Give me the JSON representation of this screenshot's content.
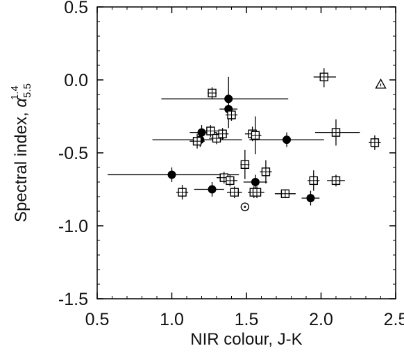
{
  "chart_data": {
    "type": "scatter",
    "xlabel": "NIR colour, J-K",
    "ylabel": {
      "prefix": "Spectral index, ",
      "symbol": "α",
      "superscript": "1.4",
      "subscript": "5.5"
    },
    "xlim": [
      0.5,
      2.5
    ],
    "ylim": [
      -1.5,
      0.5
    ],
    "xticks": [
      "0.5",
      "1.0",
      "1.5",
      "2.0",
      "2.5"
    ],
    "yticks": [
      "-1.5",
      "-1.0",
      "-0.5",
      "0.0",
      "0.5"
    ],
    "grid": false,
    "legend": "none",
    "series": [
      {
        "marker": "filled-circle",
        "color": "#000000",
        "points": [
          {
            "x": 1.0,
            "y": -0.65,
            "xerr": [
              0.43,
              0.45
            ],
            "yerr": [
              0.05,
              0.05
            ]
          },
          {
            "x": 1.19,
            "y": -0.41,
            "xerr": [
              0.32,
              0.28
            ],
            "yerr": [
              0.05,
              0.05
            ]
          },
          {
            "x": 1.2,
            "y": -0.36,
            "xerr": [
              0.08,
              0.1
            ],
            "yerr": [
              0.05,
              0.05
            ]
          },
          {
            "x": 1.27,
            "y": -0.75,
            "xerr": [
              0.12,
              0.08
            ],
            "yerr": [
              0.05,
              0.05
            ]
          },
          {
            "x": 1.38,
            "y": -0.13,
            "xerr": [
              0.45,
              0.4
            ],
            "yerr": [
              0.2,
              0.15
            ]
          },
          {
            "x": 1.38,
            "y": -0.2,
            "xerr": [
              0.06,
              0.06
            ],
            "yerr": [
              0.05,
              0.05
            ]
          },
          {
            "x": 1.56,
            "y": -0.7,
            "xerr": [
              0.08,
              0.08
            ],
            "yerr": [
              0.05,
              0.05
            ]
          },
          {
            "x": 1.77,
            "y": -0.41,
            "xerr": [
              0.25,
              0.25
            ],
            "yerr": [
              0.05,
              0.05
            ]
          },
          {
            "x": 1.93,
            "y": -0.81,
            "xerr": [
              0.06,
              0.06
            ],
            "yerr": [
              0.05,
              0.05
            ]
          }
        ]
      },
      {
        "marker": "open-square",
        "color": "#000000",
        "points": [
          {
            "x": 1.07,
            "y": -0.77,
            "xerr": [
              0.04,
              0.04
            ],
            "yerr": [
              0.05,
              0.05
            ]
          },
          {
            "x": 1.17,
            "y": -0.42,
            "xerr": [
              0.05,
              0.05
            ],
            "yerr": [
              0.05,
              0.05
            ]
          },
          {
            "x": 1.26,
            "y": -0.35,
            "xerr": [
              0.05,
              0.05
            ],
            "yerr": [
              0.04,
              0.04
            ]
          },
          {
            "x": 1.27,
            "y": -0.09,
            "xerr": [
              0.03,
              0.03
            ],
            "yerr": [
              0.04,
              0.04
            ]
          },
          {
            "x": 1.3,
            "y": -0.4,
            "xerr": [
              0.05,
              0.05
            ],
            "yerr": [
              0.04,
              0.04
            ]
          },
          {
            "x": 1.34,
            "y": -0.37,
            "xerr": [
              0.04,
              0.04
            ],
            "yerr": [
              0.04,
              0.04
            ]
          },
          {
            "x": 1.35,
            "y": -0.67,
            "xerr": [
              0.05,
              0.05
            ],
            "yerr": [
              0.04,
              0.04
            ]
          },
          {
            "x": 1.39,
            "y": -0.69,
            "xerr": [
              0.05,
              0.05
            ],
            "yerr": [
              0.04,
              0.04
            ]
          },
          {
            "x": 1.4,
            "y": -0.24,
            "xerr": [
              0.04,
              0.04
            ],
            "yerr": [
              0.04,
              0.04
            ]
          },
          {
            "x": 1.42,
            "y": -0.77,
            "xerr": [
              0.05,
              0.05
            ],
            "yerr": [
              0.04,
              0.04
            ]
          },
          {
            "x": 1.49,
            "y": -0.58,
            "xerr": [
              0.03,
              0.03
            ],
            "yerr": [
              0.1,
              0.1
            ]
          },
          {
            "x": 1.54,
            "y": -0.37,
            "xerr": [
              0.05,
              0.05
            ],
            "yerr": [
              0.05,
              0.05
            ]
          },
          {
            "x": 1.55,
            "y": -0.77,
            "xerr": [
              0.04,
              0.04
            ],
            "yerr": [
              0.04,
              0.04
            ]
          },
          {
            "x": 1.56,
            "y": -0.38,
            "xerr": [
              0.04,
              0.04
            ],
            "yerr": [
              0.13,
              0.13
            ]
          },
          {
            "x": 1.57,
            "y": -0.77,
            "xerr": [
              0.05,
              0.05
            ],
            "yerr": [
              0.04,
              0.04
            ]
          },
          {
            "x": 1.63,
            "y": -0.63,
            "xerr": [
              0.04,
              0.04
            ],
            "yerr": [
              0.08,
              0.08
            ]
          },
          {
            "x": 1.76,
            "y": -0.78,
            "xerr": [
              0.07,
              0.07
            ],
            "yerr": [
              0.03,
              0.03
            ]
          },
          {
            "x": 1.95,
            "y": -0.69,
            "xerr": [
              0.04,
              0.04
            ],
            "yerr": [
              0.07,
              0.07
            ]
          },
          {
            "x": 2.02,
            "y": 0.02,
            "xerr": [
              0.07,
              0.08
            ],
            "yerr": [
              0.07,
              0.06
            ]
          },
          {
            "x": 2.1,
            "y": -0.36,
            "xerr": [
              0.14,
              0.16
            ],
            "yerr": [
              0.09,
              0.09
            ]
          },
          {
            "x": 2.1,
            "y": -0.69,
            "xerr": [
              0.06,
              0.06
            ],
            "yerr": [
              0.04,
              0.04
            ]
          },
          {
            "x": 2.36,
            "y": -0.43,
            "xerr": [
              0.04,
              0.04
            ],
            "yerr": [
              0.05,
              0.05
            ]
          }
        ]
      },
      {
        "marker": "open-triangle",
        "color": "#000000",
        "points": [
          {
            "x": 2.4,
            "y": -0.03
          }
        ]
      },
      {
        "marker": "open-circle-dot",
        "color": "#000000",
        "points": [
          {
            "x": 1.49,
            "y": -0.87
          }
        ]
      }
    ]
  }
}
